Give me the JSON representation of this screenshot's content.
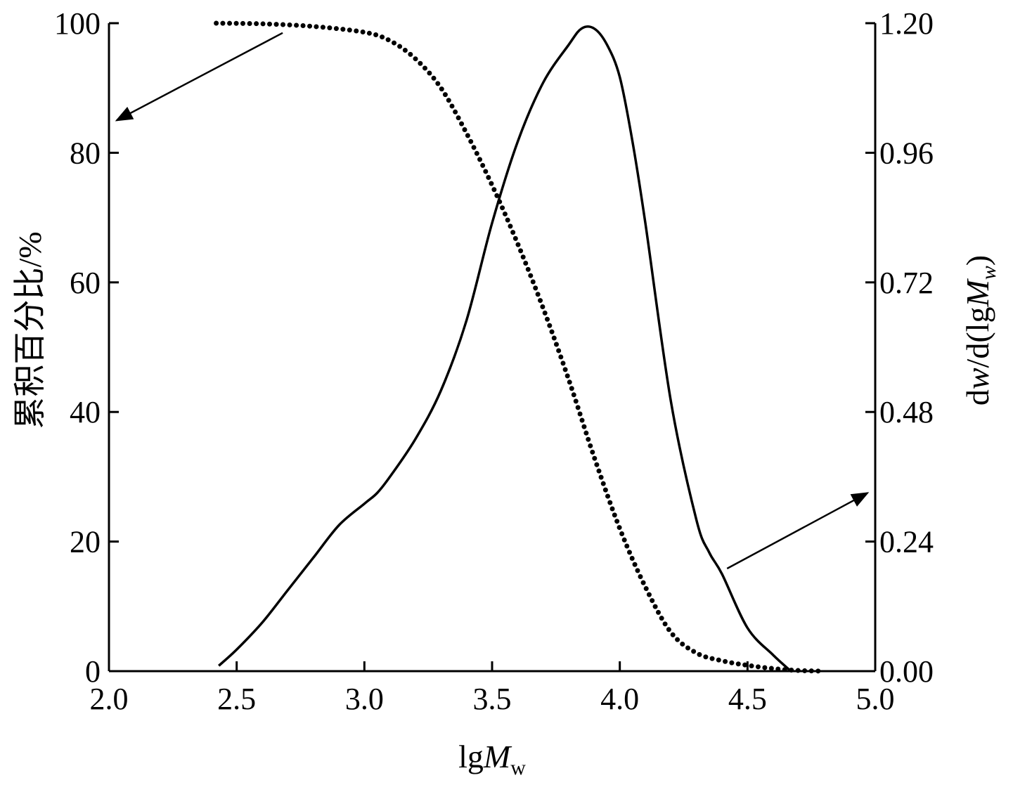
{
  "chart_data": {
    "type": "line",
    "title": "",
    "x_axis": {
      "label_main": "lg",
      "label_italic": "M",
      "label_sub": "w",
      "range": [
        2.0,
        5.0
      ],
      "ticks": [
        "2.0",
        "2.5",
        "3.0",
        "3.5",
        "4.0",
        "4.5",
        "5.0"
      ]
    },
    "y_left_axis": {
      "label": "累积百分比/%",
      "range": [
        0,
        100
      ],
      "ticks": [
        "0",
        "20",
        "40",
        "60",
        "80",
        "100"
      ]
    },
    "y_right_axis": {
      "label_pre": "d",
      "label_w": "w",
      "label_mid": "/d(lg",
      "label_M": "M",
      "label_sub": "w",
      "label_post": ")",
      "range": [
        0.0,
        1.2
      ],
      "ticks": [
        "0.00",
        "0.24",
        "0.48",
        "0.72",
        "0.96",
        "1.20"
      ]
    },
    "grid": false,
    "series": [
      {
        "axis": "left",
        "style": "dotted",
        "x": [
          2.42,
          2.6,
          2.8,
          3.0,
          3.1,
          3.2,
          3.3,
          3.4,
          3.5,
          3.6,
          3.7,
          3.8,
          3.9,
          4.0,
          4.1,
          4.2,
          4.3,
          4.4,
          4.5,
          4.6,
          4.7,
          4.8
        ],
        "y": [
          100,
          99.9,
          99.5,
          98.6,
          97.3,
          94.5,
          90,
          83,
          75,
          66,
          56,
          45,
          33,
          22,
          13,
          6,
          2.8,
          1.6,
          0.9,
          0.4,
          0.1,
          0
        ]
      },
      {
        "axis": "right",
        "style": "solid",
        "x": [
          2.43,
          2.5,
          2.6,
          2.7,
          2.8,
          2.9,
          3.0,
          3.05,
          3.1,
          3.2,
          3.3,
          3.4,
          3.5,
          3.6,
          3.7,
          3.8,
          3.85,
          3.9,
          3.95,
          4.0,
          4.05,
          4.1,
          4.2,
          4.3,
          4.35,
          4.4,
          4.5,
          4.6,
          4.67
        ],
        "y": [
          0.01,
          0.04,
          0.09,
          0.15,
          0.21,
          0.27,
          0.31,
          0.33,
          0.36,
          0.43,
          0.52,
          0.65,
          0.83,
          0.98,
          1.09,
          1.16,
          1.19,
          1.19,
          1.16,
          1.1,
          0.98,
          0.83,
          0.5,
          0.28,
          0.22,
          0.18,
          0.08,
          0.03,
          0.0
        ]
      }
    ],
    "annotations": [
      {
        "type": "arrow",
        "points_to": "left-axis",
        "from": {
          "x": 2.68,
          "y": 98.5
        },
        "to": {
          "x": 2.03,
          "y": 85
        }
      },
      {
        "type": "arrow",
        "points_to": "right-axis",
        "from": {
          "x": 4.42,
          "y": 0.19
        },
        "to": {
          "x": 4.97,
          "y": 0.33
        }
      }
    ]
  }
}
